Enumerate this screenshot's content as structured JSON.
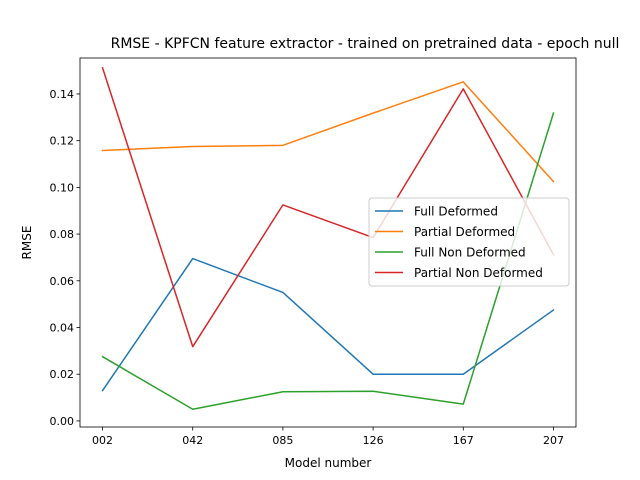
{
  "chart_data": {
    "type": "line",
    "title": "RMSE - KPFCN feature extractor -  trained on pretrained data -  epoch null",
    "xlabel": "Model number",
    "ylabel": "RMSE",
    "categories": [
      "002",
      "042",
      "085",
      "126",
      "167",
      "207"
    ],
    "ylim": [
      -0.0026,
      0.1554
    ],
    "yticks": [
      0.0,
      0.02,
      0.04,
      0.06,
      0.08,
      0.1,
      0.12,
      0.14
    ],
    "ytick_labels": [
      "0.00",
      "0.02",
      "0.04",
      "0.06",
      "0.08",
      "0.10",
      "0.12",
      "0.14"
    ],
    "grid": false,
    "legend_position": "center-right",
    "series": [
      {
        "name": "Full Deformed",
        "color": "#1f77b4",
        "values": [
          0.013,
          0.0695,
          0.055,
          0.02,
          0.02,
          0.0475
        ]
      },
      {
        "name": "Partial Deformed",
        "color": "#ff7f0e",
        "values": [
          0.1158,
          0.1175,
          0.118,
          0.1318,
          0.1452,
          0.1025
        ]
      },
      {
        "name": "Full Non Deformed",
        "color": "#2ca02c",
        "values": [
          0.0275,
          0.005,
          0.0125,
          0.0127,
          0.0072,
          0.1318
        ]
      },
      {
        "name": "Partial Non Deformed",
        "color": "#d62728",
        "values": [
          0.1512,
          0.0318,
          0.0925,
          0.0785,
          0.1422,
          0.0712
        ]
      }
    ]
  }
}
